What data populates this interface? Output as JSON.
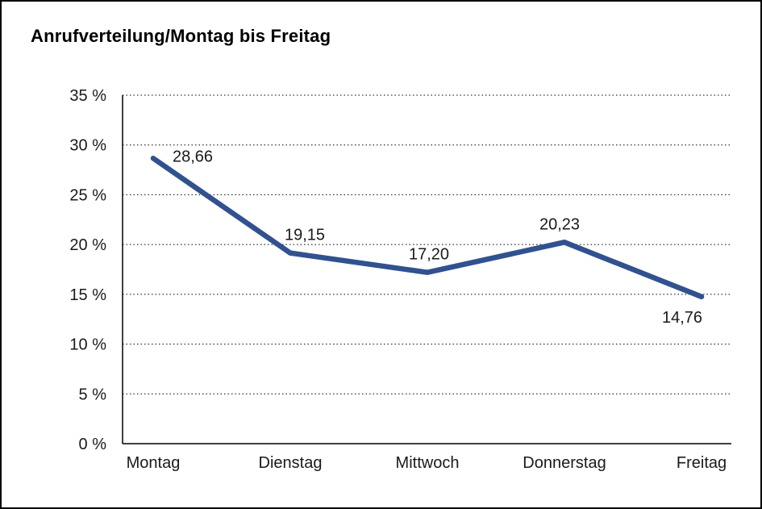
{
  "title": "Anrufverteilung/Montag bis Freitag",
  "chart_data": {
    "type": "line",
    "title": "Anrufverteilung/Montag bis Freitag",
    "categories": [
      "Montag",
      "Dienstag",
      "Mittwoch",
      "Donnerstag",
      "Freitag"
    ],
    "values": [
      28.66,
      19.15,
      17.2,
      20.23,
      14.76
    ],
    "value_labels": [
      "28,66",
      "19,15",
      "17,20",
      "20,23",
      "14,76"
    ],
    "xlabel": "",
    "ylabel": "",
    "ylim": [
      0,
      35
    ],
    "ytick_step": 5,
    "ytick_labels": [
      "0 %",
      "5 %",
      "10 %",
      "15 %",
      "20 %",
      "25 %",
      "30 %",
      "35 %"
    ],
    "grid": "horizontal-dotted",
    "legend": "none",
    "line_color": "#31518f",
    "axis_color": "#000000",
    "background_color": "#ffffff",
    "text_color": "#1a1a1a"
  }
}
